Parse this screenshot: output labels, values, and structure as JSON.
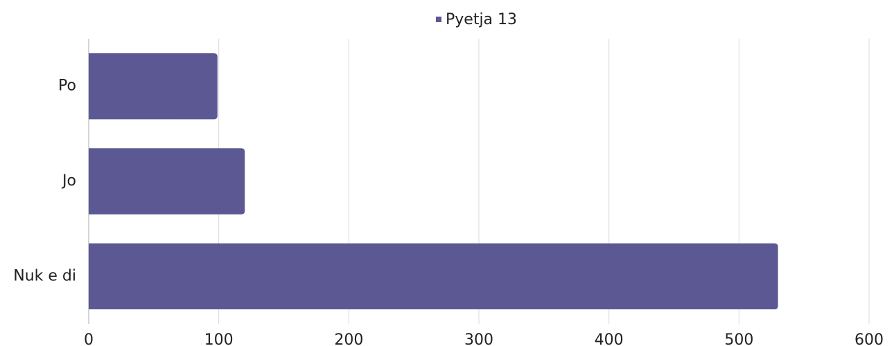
{
  "chart_data": {
    "type": "bar",
    "orientation": "horizontal",
    "categories": [
      "Po",
      "Jo",
      "Nuk e di"
    ],
    "series": [
      {
        "name": "Pyetja 13",
        "color": "#5b5893",
        "values": [
          99,
          120,
          530
        ]
      }
    ],
    "xlim": [
      0,
      600
    ],
    "xticks": [
      0,
      100,
      200,
      300,
      400,
      500,
      600
    ],
    "grid": true,
    "legend": "top"
  }
}
